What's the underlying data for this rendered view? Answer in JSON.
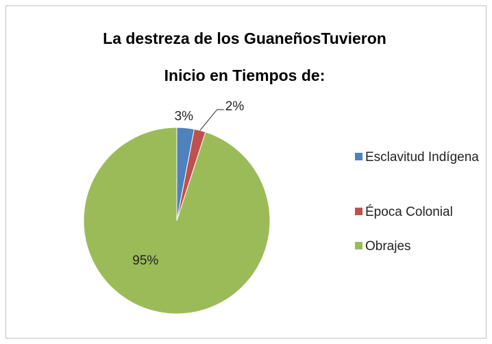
{
  "chart_data": {
    "type": "pie",
    "title": [
      "La destreza de los GuaneñosTuvieron",
      "Inicio en Tiempos de:"
    ],
    "categories": [
      "Esclavitud Indígena",
      "Época Colonial",
      "Obrajes"
    ],
    "values": [
      3,
      2,
      95
    ],
    "value_labels": [
      "3%",
      "2%",
      "95%"
    ],
    "colors": [
      "#4f81bd",
      "#c0504d",
      "#9bbb59"
    ],
    "legend": "right"
  }
}
